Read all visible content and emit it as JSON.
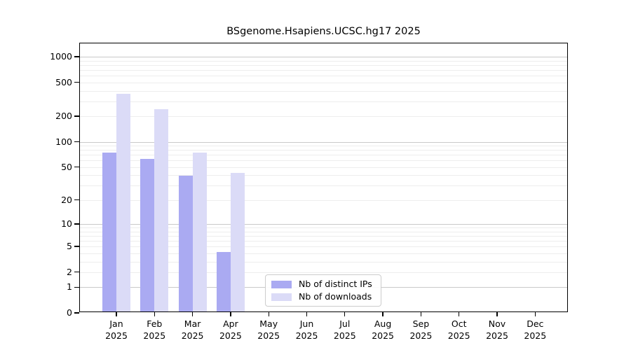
{
  "chart_data": {
    "type": "bar",
    "title": "BSgenome.Hsapiens.UCSC.hg17 2025",
    "categories": [
      "Jan",
      "Feb",
      "Mar",
      "Apr",
      "May",
      "Jun",
      "Jul",
      "Aug",
      "Sep",
      "Oct",
      "Nov",
      "Dec"
    ],
    "year_label": "2025",
    "series": [
      {
        "name": "Nb of distinct IPs",
        "color": "#aaaaf2",
        "values": [
          72,
          60,
          38,
          4,
          0,
          0,
          0,
          0,
          0,
          0,
          0,
          0
        ]
      },
      {
        "name": "Nb of downloads",
        "color": "#dbdbf7",
        "values": [
          355,
          235,
          72,
          41,
          0,
          0,
          0,
          0,
          0,
          0,
          0,
          0
        ]
      }
    ],
    "y_axis": {
      "scale": "log1p",
      "tick_values": [
        0,
        1,
        2,
        5,
        10,
        20,
        50,
        100,
        200,
        500,
        1000
      ],
      "tick_labels": [
        "0",
        "1",
        "2",
        "5",
        "10",
        "20",
        "50",
        "100",
        "200",
        "500",
        "1000"
      ],
      "range_top": 1400
    },
    "grid": {
      "on": true,
      "major_values": [
        1,
        10,
        100,
        1000
      ],
      "minor_multipliers": [
        2,
        3,
        4,
        5,
        6,
        7,
        8,
        9
      ],
      "major_color": "#c9c9c9",
      "minor_color": "#ededed"
    },
    "legend": {
      "position": "inside-bottom-center"
    },
    "colors": {
      "axis": "#000000",
      "background": "#ffffff"
    }
  }
}
